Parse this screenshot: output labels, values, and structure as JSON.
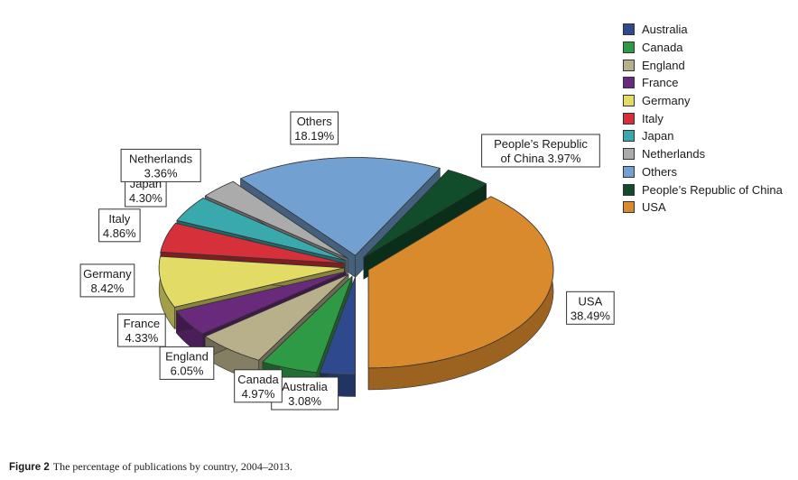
{
  "chart_data": {
    "type": "pie",
    "title": "",
    "slices": [
      {
        "label": "Australia",
        "value": 3.08,
        "display": "3.08%",
        "color": "#2e4a8c"
      },
      {
        "label": "Canada",
        "value": 4.97,
        "display": "4.97%",
        "color": "#2f9a45"
      },
      {
        "label": "England",
        "value": 6.05,
        "display": "6.05%",
        "color": "#b7b08a"
      },
      {
        "label": "France",
        "value": 4.33,
        "display": "4.33%",
        "color": "#6a2a7c"
      },
      {
        "label": "Germany",
        "value": 8.42,
        "display": "8.42%",
        "color": "#e2dc66"
      },
      {
        "label": "Italy",
        "value": 4.86,
        "display": "4.86%",
        "color": "#d6303a"
      },
      {
        "label": "Japan",
        "value": 4.3,
        "display": "4.30%",
        "color": "#3aa9ad"
      },
      {
        "label": "Netherlands",
        "value": 3.36,
        "display": "3.36%",
        "color": "#ababab"
      },
      {
        "label": "Others",
        "value": 18.19,
        "display": "18.19%",
        "color": "#72a0d0"
      },
      {
        "label": "People’s Republic of China",
        "value": 3.97,
        "display": "3.97%",
        "color": "#114d2a",
        "callout_lines": [
          "People’s Republic",
          "of China 3.97%"
        ]
      },
      {
        "label": "USA",
        "value": 38.49,
        "display": "38.49%",
        "color": "#d88a2c"
      }
    ],
    "legend_position": "top-right",
    "style": "exploded 3D pie"
  },
  "legend": {
    "items": [
      {
        "label": "Australia",
        "color": "#2e4a8c"
      },
      {
        "label": "Canada",
        "color": "#2f9a45"
      },
      {
        "label": "England",
        "color": "#b7b08a"
      },
      {
        "label": "France",
        "color": "#6a2a7c"
      },
      {
        "label": "Germany",
        "color": "#e2dc66"
      },
      {
        "label": "Italy",
        "color": "#d6303a"
      },
      {
        "label": "Japan",
        "color": "#3aa9ad"
      },
      {
        "label": "Netherlands",
        "color": "#ababab"
      },
      {
        "label": "Others",
        "color": "#72a0d0"
      },
      {
        "label": "People’s Republic of China",
        "color": "#114d2a"
      },
      {
        "label": "USA",
        "color": "#d88a2c"
      }
    ]
  },
  "caption": {
    "label": "Figure 2",
    "text": "The percentage of publications by country, 2004–2013."
  }
}
